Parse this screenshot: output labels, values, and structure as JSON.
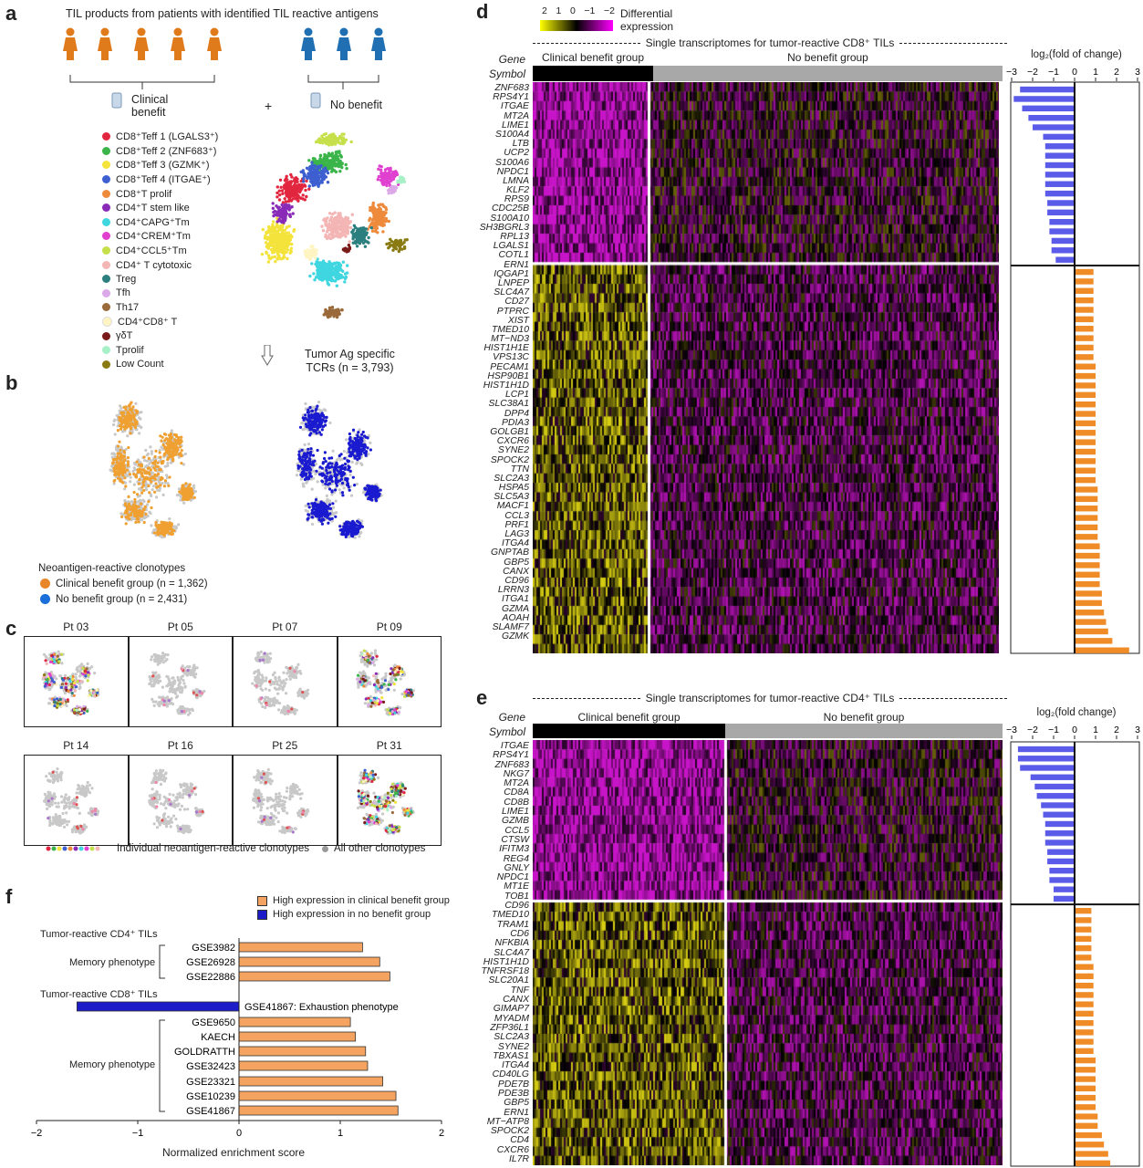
{
  "panel_labels": {
    "a": "a",
    "b": "b",
    "c": "c",
    "d": "d",
    "e": "e",
    "f": "f"
  },
  "a": {
    "title": "TIL products from patients with identified TIL reactive antigens",
    "clinical_benefit": "Clinical\nbenefit",
    "clinical_line1": "Clinical",
    "clinical_line2": "benefit",
    "plus": "+",
    "no_benefit": "No benefit",
    "clusters": [
      {
        "label": "CD8⁺Teff 1 (LGALS3⁺)",
        "color": "#e2263f"
      },
      {
        "label": "CD8⁺Teff 2 (ZNF683⁺)",
        "color": "#3bb54a"
      },
      {
        "label": "CD8⁺Teff 3 (GZMK⁺)",
        "color": "#f3e33a"
      },
      {
        "label": "CD8⁺Teff 4 (ITGAE⁺)",
        "color": "#3d5fd0"
      },
      {
        "label": "CD8⁺T prolif",
        "color": "#ee8a3c"
      },
      {
        "label": "CD4⁺T stem like",
        "color": "#8a2bb8"
      },
      {
        "label": "CD4⁺CAPG⁺Tm",
        "color": "#3fd6e0"
      },
      {
        "label": "CD4⁺CREM⁺Tm",
        "color": "#e040d0"
      },
      {
        "label": "CD4⁺CCL5⁺Tm",
        "color": "#c5e04a"
      },
      {
        "label": "CD4⁺ T cytotoxic",
        "color": "#f4b5b5"
      },
      {
        "label": "Treg",
        "color": "#2c7f7f"
      },
      {
        "label": "Tfh",
        "color": "#dba8e8"
      },
      {
        "label": "Th17",
        "color": "#9b6a3a"
      },
      {
        "label": "CD4⁺CD8⁺ T",
        "color": "#fff4c2"
      },
      {
        "label": "γδT",
        "color": "#7a1a1a"
      },
      {
        "label": "Tprolif",
        "color": "#a8f0c8"
      },
      {
        "label": "Low Count",
        "color": "#8a7a12"
      }
    ],
    "tumor_ag_line1": "Tumor Ag specific",
    "tumor_ag_line2": "TCRs (n = 3,793)"
  },
  "b": {
    "legend_title": "Neoantigen-reactive clonotypes",
    "clinical": "Clinical benefit group (n = 1,362)",
    "no_benefit": "No benefit group (n = 2,431)",
    "clinical_color": "#f0a030",
    "no_benefit_color": "#1a1ad0"
  },
  "c": {
    "patients": [
      "Pt 03",
      "Pt 05",
      "Pt 07",
      "Pt 09",
      "Pt 14",
      "Pt 16",
      "Pt 25",
      "Pt 31"
    ],
    "legend_individual": "Individual neoantigen-reactive clonotypes",
    "legend_other": "All other clonotypes"
  },
  "d": {
    "colorbar_ticks": [
      "2",
      "1",
      "0",
      "−1",
      "−2"
    ],
    "colorbar_title1": "Differential",
    "colorbar_title2": "expression",
    "header": "Single transcriptomes for tumor-reactive CD8⁺ TILs",
    "gene_header": "Gene",
    "symbol_header": "Symbol",
    "group_clinical": "Clinical benefit group",
    "group_no": "No benefit group",
    "fc_title": "log₂(fold of change)",
    "fc_ticks": [
      "−3",
      "−2",
      "−1",
      "0",
      "1",
      "2",
      "3"
    ],
    "genes": [
      "ZNF683",
      "RPS4Y1",
      "ITGAE",
      "MT2A",
      "LIME1",
      "S100A4",
      "LTB",
      "UCP2",
      "S100A6",
      "NPDC1",
      "LMNA",
      "KLF2",
      "RPS9",
      "CDC25B",
      "S100A10",
      "SH3BGRL3",
      "RPL13",
      "LGALS1",
      "COTL1",
      "ERN1",
      "IQGAP1",
      "LNPEP",
      "SLC4A7",
      "CD27",
      "PTPRC",
      "XIST",
      "TMED10",
      "MT−ND3",
      "HIST1H1E",
      "VPS13C",
      "PECAM1",
      "HSP90B1",
      "HIST1H1D",
      "LCP1",
      "SLC38A1",
      "DPP4",
      "PDIA3",
      "GOLGB1",
      "CXCR6",
      "SYNE2",
      "SPOCK2",
      "TTN",
      "SLC2A3",
      "HSPA5",
      "SLC5A3",
      "MACF1",
      "CCL3",
      "PRF1",
      "LAG3",
      "ITGA4",
      "GNPTAB",
      "GBP5",
      "CANX",
      "CD96",
      "LRRN3",
      "ITGA1",
      "GZMA",
      "AOAH",
      "SLAMF7",
      "GZMK"
    ]
  },
  "e": {
    "header": "Single transcriptomes for tumor-reactive CD4⁺ TILs",
    "gene_header": "Gene",
    "symbol_header": "Symbol",
    "group_clinical": "Clinical benefit group",
    "group_no": "No benefit group",
    "fc_title": "log₂(fold change)",
    "fc_ticks": [
      "−3",
      "−2",
      "−1",
      "0",
      "1",
      "2",
      "3"
    ],
    "genes": [
      "ITGAE",
      "RPS4Y1",
      "ZNF683",
      "NKG7",
      "MT2A",
      "CD8A",
      "CD8B",
      "LIME1",
      "GZMB",
      "CCL5",
      "CTSW",
      "IFITM3",
      "REG4",
      "GNLY",
      "NPDC1",
      "MT1E",
      "TOB1",
      "CD96",
      "TMED10",
      "TRAM1",
      "CD6",
      "NFKBIA",
      "SLC4A7",
      "HIST1H1D",
      "TNFRSF18",
      "SLC20A1",
      "TNF",
      "CANX",
      "GIMAP7",
      "MYADM",
      "ZFP36L1",
      "SLC2A3",
      "SYNE2",
      "TBXAS1",
      "ITGA4",
      "CD40LG",
      "PDE7B",
      "PDE3B",
      "GBP5",
      "ERN1",
      "MT−ATP8",
      "SPOCK2",
      "CD4",
      "CXCR6",
      "IL7R"
    ]
  },
  "f": {
    "legend_high_clinical": "High expression in clinical benefit group",
    "legend_high_no": "High expression in no benefit group",
    "clinical_color": "#f4a460",
    "no_color": "#1c1cc8",
    "cd4_title": "Tumor-reactive CD4⁺ TILs",
    "cd8_title": "Tumor-reactive CD8⁺ TILs",
    "memory1": "Memory phenotype",
    "memory2": "Memory phenotype",
    "exhaustion_label": "GSE41867: Exhaustion phenotype",
    "xlabel": "Normalized enrichment score",
    "xticks": [
      "−2",
      "−1",
      "0",
      "1",
      "2"
    ]
  },
  "chart_data": [
    {
      "type": "bar",
      "title": "",
      "xlabel": "Normalized enrichment score",
      "ylabel": "",
      "xlim": [
        -2,
        2
      ],
      "groups": [
        {
          "name": "Tumor-reactive CD4⁺ TILs",
          "categories": [
            "GSE3982",
            "GSE26928",
            "GSE22886"
          ],
          "values": [
            1.22,
            1.39,
            1.49
          ]
        },
        {
          "name": "Tumor-reactive CD8⁺ TILs",
          "categories": [
            "GSE41867: Exhaustion phenotype",
            "GSE9650",
            "KAECH",
            "GOLDRATTH",
            "GSE32423",
            "GSE23321",
            "GSE10239",
            "GSE41867"
          ],
          "values": [
            -1.6,
            1.1,
            1.15,
            1.25,
            1.27,
            1.42,
            1.55,
            1.57
          ]
        }
      ]
    },
    {
      "type": "bar",
      "title": "",
      "xlabel": "log₂(fold of change)",
      "xlim": [
        -3,
        3
      ],
      "categories": [
        "ZNF683",
        "RPS4Y1",
        "ITGAE",
        "MT2A",
        "LIME1",
        "S100A4",
        "LTB",
        "UCP2",
        "S100A6",
        "NPDC1",
        "LMNA",
        "KLF2",
        "RPS9",
        "CDC25B",
        "S100A10",
        "SH3BGRL3",
        "RPL13",
        "LGALS1",
        "COTL1",
        "ERN1",
        "IQGAP1",
        "LNPEP",
        "SLC4A7",
        "CD27",
        "PTPRC",
        "XIST",
        "TMED10",
        "MT−ND3",
        "HIST1H1E",
        "VPS13C",
        "PECAM1",
        "HSP90B1",
        "HIST1H1D",
        "LCP1",
        "SLC38A1",
        "DPP4",
        "PDIA3",
        "GOLGB1",
        "CXCR6",
        "SYNE2",
        "SPOCK2",
        "TTN",
        "SLC2A3",
        "HSPA5",
        "SLC5A3",
        "MACF1",
        "CCL3",
        "PRF1",
        "LAG3",
        "ITGA4",
        "GNPTAB",
        "GBP5",
        "CANX",
        "CD96",
        "LRRN3",
        "ITGA1",
        "GZMA",
        "AOAH",
        "SLAMF7",
        "GZMK"
      ],
      "values": [
        -2.6,
        -2.9,
        -2.5,
        -2.2,
        -2.0,
        -1.5,
        -1.4,
        -1.4,
        -1.4,
        -1.4,
        -1.4,
        -1.4,
        -1.3,
        -1.3,
        -1.2,
        -1.2,
        -1.1,
        -1.1,
        -0.9,
        0.9,
        0.9,
        0.9,
        0.9,
        0.9,
        0.9,
        0.9,
        0.9,
        0.9,
        0.9,
        1.0,
        1.0,
        1.0,
        1.0,
        1.0,
        1.0,
        1.0,
        1.0,
        1.0,
        1.0,
        1.0,
        1.0,
        1.0,
        1.1,
        1.1,
        1.1,
        1.1,
        1.1,
        1.1,
        1.2,
        1.2,
        1.2,
        1.2,
        1.2,
        1.3,
        1.3,
        1.4,
        1.5,
        1.6,
        1.8,
        2.6
      ]
    },
    {
      "type": "bar",
      "title": "",
      "xlabel": "log₂(fold change)",
      "xlim": [
        -3,
        3
      ],
      "categories": [
        "ITGAE",
        "RPS4Y1",
        "ZNF683",
        "NKG7",
        "MT2A",
        "CD8A",
        "CD8B",
        "LIME1",
        "GZMB",
        "CCL5",
        "CTSW",
        "IFITM3",
        "REG4",
        "GNLY",
        "NPDC1",
        "MT1E",
        "TOB1",
        "CD96",
        "TMED10",
        "TRAM1",
        "CD6",
        "NFKBIA",
        "SLC4A7",
        "HIST1H1D",
        "TNFRSF18",
        "SLC20A1",
        "TNF",
        "CANX",
        "GIMAP7",
        "MYADM",
        "ZFP36L1",
        "SLC2A3",
        "SYNE2",
        "TBXAS1",
        "ITGA4",
        "CD40LG",
        "PDE7B",
        "PDE3B",
        "GBP5",
        "ERN1",
        "MT−ATP8",
        "SPOCK2",
        "CD4",
        "CXCR6",
        "IL7R"
      ],
      "values": [
        -2.7,
        -2.7,
        -2.6,
        -2.1,
        -1.9,
        -1.8,
        -1.6,
        -1.5,
        -1.4,
        -1.4,
        -1.4,
        -1.3,
        -1.3,
        -1.2,
        -1.2,
        -1.0,
        -1.0,
        0.8,
        0.8,
        0.8,
        0.8,
        0.8,
        0.8,
        0.9,
        0.9,
        0.9,
        0.9,
        0.9,
        0.9,
        0.9,
        0.9,
        0.9,
        0.9,
        1.0,
        1.0,
        1.0,
        1.0,
        1.0,
        1.0,
        1.1,
        1.1,
        1.3,
        1.4,
        1.6,
        1.7
      ]
    }
  ]
}
